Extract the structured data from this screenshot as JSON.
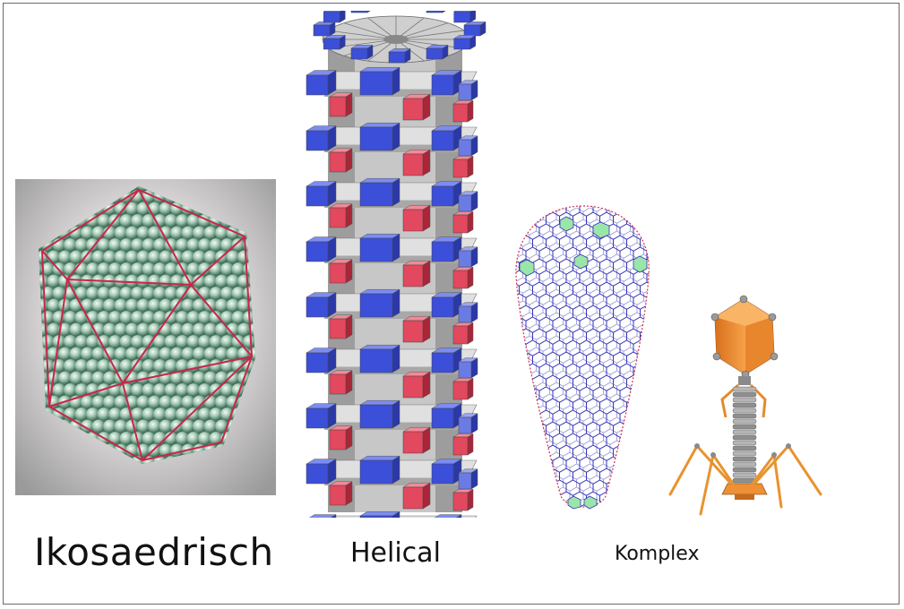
{
  "labels": {
    "icosahedral": "Ikosaedrisch",
    "helical": "Helical",
    "complex": "Komplex"
  },
  "colors": {
    "sphere_green": "#8fb8a4",
    "edge_red": "#c8264a",
    "helix_blue": "#3c4fd8",
    "helix_red": "#e2485e",
    "helix_gray": "#bdbdbd",
    "cone_blue": "#3232b0",
    "cone_green": "#9ae6a8",
    "phage_orange": "#f2963a",
    "phage_gray": "#9a9a9a"
  }
}
